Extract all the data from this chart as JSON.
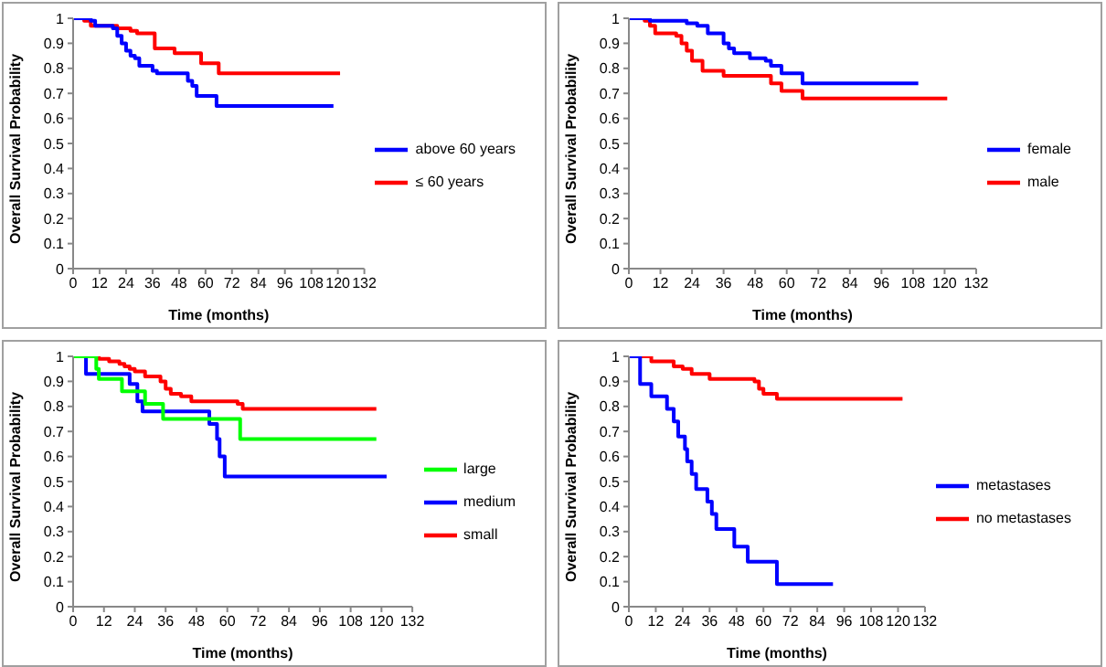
{
  "chart_data": [
    {
      "type": "step",
      "xlabel": "Time (months)",
      "ylabel": "Overall Survival Probability",
      "xlim": [
        0,
        132
      ],
      "xticks": [
        0,
        12,
        24,
        36,
        48,
        60,
        72,
        84,
        96,
        108,
        120,
        132
      ],
      "ylim": [
        0,
        1
      ],
      "yticks": [
        0,
        0.1,
        0.2,
        0.3,
        0.4,
        0.5,
        0.6,
        0.7,
        0.8,
        0.9,
        1
      ],
      "legend": "right",
      "series": [
        {
          "name": "≤ 60 years",
          "color": "#ff0000",
          "x": [
            0,
            5,
            8,
            20,
            26,
            29,
            37,
            46,
            58,
            66,
            121
          ],
          "values": [
            1,
            0.99,
            0.97,
            0.96,
            0.95,
            0.94,
            0.88,
            0.86,
            0.82,
            0.78,
            0.78
          ]
        },
        {
          "name": "above 60 years",
          "color": "#0000ff",
          "x": [
            0,
            8,
            10,
            18,
            20,
            22,
            24,
            26,
            28,
            30,
            36,
            38,
            52,
            54,
            56,
            65,
            118
          ],
          "values": [
            1,
            0.99,
            0.97,
            0.96,
            0.93,
            0.9,
            0.87,
            0.85,
            0.84,
            0.81,
            0.79,
            0.78,
            0.75,
            0.73,
            0.69,
            0.65,
            0.65
          ]
        }
      ]
    },
    {
      "type": "step",
      "xlabel": "Time (months)",
      "ylabel": "Overall Survival Probability",
      "xlim": [
        0,
        132
      ],
      "xticks": [
        0,
        12,
        24,
        36,
        48,
        60,
        72,
        84,
        96,
        108,
        120,
        132
      ],
      "ylim": [
        0,
        1
      ],
      "yticks": [
        0,
        0.1,
        0.2,
        0.3,
        0.4,
        0.5,
        0.6,
        0.7,
        0.8,
        0.9,
        1
      ],
      "legend": "right",
      "series": [
        {
          "name": "male",
          "color": "#ff0000",
          "x": [
            0,
            6,
            8,
            10,
            18,
            20,
            22,
            24,
            28,
            36,
            54,
            58,
            66,
            121
          ],
          "values": [
            1,
            0.99,
            0.97,
            0.94,
            0.93,
            0.9,
            0.87,
            0.83,
            0.79,
            0.77,
            0.74,
            0.71,
            0.68,
            0.68
          ]
        },
        {
          "name": "female",
          "color": "#0000ff",
          "x": [
            0,
            8,
            22,
            26,
            30,
            36,
            38,
            40,
            46,
            52,
            54,
            58,
            66,
            110
          ],
          "values": [
            1,
            0.99,
            0.98,
            0.97,
            0.94,
            0.9,
            0.88,
            0.86,
            0.84,
            0.83,
            0.81,
            0.78,
            0.74,
            0.74
          ]
        }
      ]
    },
    {
      "type": "step",
      "xlabel": "Time (months)",
      "ylabel": "Overall Survival Probability",
      "xlim": [
        0,
        132
      ],
      "xticks": [
        0,
        12,
        24,
        36,
        48,
        60,
        72,
        84,
        96,
        108,
        120,
        132
      ],
      "ylim": [
        0,
        1
      ],
      "yticks": [
        0,
        0.1,
        0.2,
        0.3,
        0.4,
        0.5,
        0.6,
        0.7,
        0.8,
        0.9,
        1
      ],
      "legend": "right",
      "series": [
        {
          "name": "small",
          "color": "#ff0000",
          "x": [
            0,
            10,
            14,
            18,
            20,
            22,
            24,
            28,
            34,
            36,
            38,
            42,
            46,
            64,
            66,
            118
          ],
          "values": [
            1,
            0.99,
            0.98,
            0.97,
            0.96,
            0.95,
            0.94,
            0.92,
            0.9,
            0.87,
            0.85,
            0.84,
            0.82,
            0.81,
            0.79,
            0.79
          ]
        },
        {
          "name": "medium",
          "color": "#0000ff",
          "x": [
            0,
            5,
            22,
            25,
            27,
            53,
            56,
            57,
            59,
            122
          ],
          "values": [
            1,
            0.93,
            0.89,
            0.82,
            0.78,
            0.73,
            0.67,
            0.6,
            0.52,
            0.52
          ]
        },
        {
          "name": "large",
          "color": "#00ff00",
          "x": [
            0,
            9,
            10,
            19,
            28,
            35,
            65,
            118
          ],
          "values": [
            1,
            0.95,
            0.91,
            0.86,
            0.81,
            0.75,
            0.67,
            0.67
          ]
        }
      ]
    },
    {
      "type": "step",
      "xlabel": "Time (months)",
      "ylabel": "Overall Survival Probability",
      "xlim": [
        0,
        132
      ],
      "xticks": [
        0,
        12,
        24,
        36,
        48,
        60,
        72,
        84,
        96,
        108,
        120,
        132
      ],
      "ylim": [
        0,
        1
      ],
      "yticks": [
        0,
        0.1,
        0.2,
        0.3,
        0.4,
        0.5,
        0.6,
        0.7,
        0.8,
        0.9,
        1
      ],
      "legend": "right",
      "series": [
        {
          "name": "no metastases",
          "color": "#ff0000",
          "x": [
            0,
            10,
            20,
            24,
            28,
            36,
            56,
            58,
            60,
            66,
            122
          ],
          "values": [
            1,
            0.98,
            0.96,
            0.95,
            0.93,
            0.91,
            0.9,
            0.87,
            0.85,
            0.83,
            0.83
          ]
        },
        {
          "name": "metastases",
          "color": "#0000ff",
          "x": [
            0,
            5,
            10,
            17,
            20,
            22,
            25,
            26,
            28,
            30,
            35,
            37,
            39,
            47,
            53,
            66,
            91
          ],
          "values": [
            1,
            0.89,
            0.84,
            0.79,
            0.74,
            0.68,
            0.63,
            0.58,
            0.53,
            0.47,
            0.42,
            0.37,
            0.31,
            0.24,
            0.18,
            0.09,
            0.09
          ]
        }
      ]
    }
  ]
}
